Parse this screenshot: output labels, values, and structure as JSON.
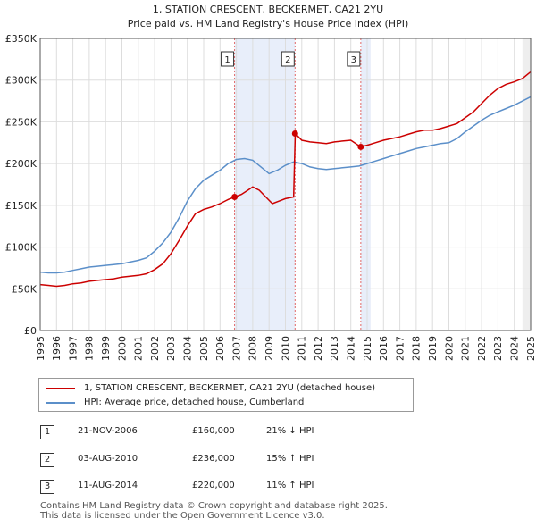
{
  "chart_data": {
    "type": "line",
    "title": "1, STATION CRESCENT, BECKERMET, CA21 2YU",
    "subtitle": "Price paid vs. HM Land Registry's House Price Index (HPI)",
    "xlim": [
      1995,
      2025
    ],
    "ylim": [
      0,
      350000
    ],
    "y_ticks": [
      0,
      50000,
      100000,
      150000,
      200000,
      250000,
      300000,
      350000
    ],
    "y_tick_labels": [
      "£0",
      "£50K",
      "£100K",
      "£150K",
      "£200K",
      "£250K",
      "£300K",
      "£350K"
    ],
    "x_ticks": [
      1995,
      1996,
      1997,
      1998,
      1999,
      2000,
      2001,
      2002,
      2003,
      2004,
      2005,
      2006,
      2007,
      2008,
      2009,
      2010,
      2011,
      2012,
      2013,
      2014,
      2015,
      2016,
      2017,
      2018,
      2019,
      2020,
      2021,
      2022,
      2023,
      2024,
      2025
    ],
    "x_tick_labels": [
      "1995",
      "1996",
      "1997",
      "1998",
      "1999",
      "2000",
      "2001",
      "2002",
      "2003",
      "2004",
      "2005",
      "2006",
      "2007",
      "2008",
      "2009",
      "2010",
      "2011",
      "2012",
      "2013",
      "2014",
      "2015",
      "2016",
      "2017",
      "2018",
      "2019",
      "2020",
      "2021",
      "2022",
      "2023",
      "2024",
      "2025"
    ],
    "series": [
      {
        "name": "1, STATION CRESCENT, BECKERMET, CA21 2YU (detached house)",
        "color": "#cc0000",
        "x": [
          1995.0,
          1995.5,
          1996.0,
          1996.5,
          1997.0,
          1997.5,
          1998.0,
          1998.5,
          1999.0,
          1999.5,
          2000.0,
          2000.5,
          2001.0,
          2001.5,
          2002.0,
          2002.5,
          2003.0,
          2003.5,
          2004.0,
          2004.5,
          2005.0,
          2005.5,
          2006.0,
          2006.5,
          2006.9,
          2007.3,
          2007.7,
          2008.0,
          2008.4,
          2008.8,
          2009.2,
          2009.6,
          2010.0,
          2010.5,
          2010.6,
          2010.8,
          2011.0,
          2011.5,
          2012.0,
          2012.5,
          2013.0,
          2013.5,
          2014.0,
          2014.6,
          2015.0,
          2015.5,
          2016.0,
          2016.5,
          2017.0,
          2017.5,
          2018.0,
          2018.5,
          2019.0,
          2019.5,
          2020.0,
          2020.5,
          2021.0,
          2021.5,
          2022.0,
          2022.5,
          2023.0,
          2023.5,
          2024.0,
          2024.5,
          2025.0
        ],
        "values": [
          55000,
          54000,
          53000,
          54000,
          56000,
          57000,
          59000,
          60000,
          61000,
          62000,
          64000,
          65000,
          66000,
          68000,
          73000,
          80000,
          92000,
          108000,
          125000,
          140000,
          145000,
          148000,
          152000,
          157000,
          160000,
          163000,
          168000,
          172000,
          168000,
          160000,
          152000,
          155000,
          158000,
          160000,
          236000,
          232000,
          228000,
          226000,
          225000,
          224000,
          226000,
          227000,
          228000,
          220000,
          222000,
          225000,
          228000,
          230000,
          232000,
          235000,
          238000,
          240000,
          240000,
          242000,
          245000,
          248000,
          255000,
          262000,
          272000,
          282000,
          290000,
          295000,
          298000,
          302000,
          310000
        ]
      },
      {
        "name": "HPI: Average price, detached house, Cumberland",
        "color": "#5b8fc9",
        "x": [
          1995.0,
          1995.5,
          1996.0,
          1996.5,
          1997.0,
          1997.5,
          1998.0,
          1998.5,
          1999.0,
          1999.5,
          2000.0,
          2000.5,
          2001.0,
          2001.5,
          2002.0,
          2002.5,
          2003.0,
          2003.5,
          2004.0,
          2004.5,
          2005.0,
          2005.5,
          2006.0,
          2006.5,
          2007.0,
          2007.5,
          2008.0,
          2008.5,
          2009.0,
          2009.5,
          2010.0,
          2010.5,
          2011.0,
          2011.5,
          2012.0,
          2012.5,
          2013.0,
          2013.5,
          2014.0,
          2014.5,
          2015.0,
          2015.5,
          2016.0,
          2016.5,
          2017.0,
          2017.5,
          2018.0,
          2018.5,
          2019.0,
          2019.5,
          2020.0,
          2020.5,
          2021.0,
          2021.5,
          2022.0,
          2022.5,
          2023.0,
          2023.5,
          2024.0,
          2024.5,
          2025.0
        ],
        "values": [
          70000,
          69000,
          69000,
          70000,
          72000,
          74000,
          76000,
          77000,
          78000,
          79000,
          80000,
          82000,
          84000,
          87000,
          95000,
          105000,
          118000,
          135000,
          155000,
          170000,
          180000,
          186000,
          192000,
          200000,
          205000,
          206000,
          204000,
          196000,
          188000,
          192000,
          198000,
          202000,
          200000,
          196000,
          194000,
          193000,
          194000,
          195000,
          196000,
          197000,
          200000,
          203000,
          206000,
          209000,
          212000,
          215000,
          218000,
          220000,
          222000,
          224000,
          225000,
          230000,
          238000,
          245000,
          252000,
          258000,
          262000,
          266000,
          270000,
          275000,
          280000
        ]
      }
    ],
    "markers": [
      {
        "label": "1",
        "x": 2006.89,
        "value": 160000
      },
      {
        "label": "2",
        "x": 2010.59,
        "value": 236000
      },
      {
        "label": "3",
        "x": 2014.61,
        "value": 220000
      }
    ]
  },
  "legend": {
    "items": [
      {
        "label": "1, STATION CRESCENT, BECKERMET, CA21 2YU (detached house)",
        "color": "#cc0000"
      },
      {
        "label": "HPI: Average price, detached house, Cumberland",
        "color": "#5b8fc9"
      }
    ]
  },
  "transactions": [
    {
      "num": "1",
      "date": "21-NOV-2006",
      "price": "£160,000",
      "hpi": "21% ↓ HPI"
    },
    {
      "num": "2",
      "date": "03-AUG-2010",
      "price": "£236,000",
      "hpi": "15% ↑ HPI"
    },
    {
      "num": "3",
      "date": "11-AUG-2014",
      "price": "£220,000",
      "hpi": "11% ↑ HPI"
    }
  ],
  "footer": {
    "line1": "Contains HM Land Registry data © Crown copyright and database right 2025.",
    "line2": "This data is licensed under the Open Government Licence v3.0."
  }
}
